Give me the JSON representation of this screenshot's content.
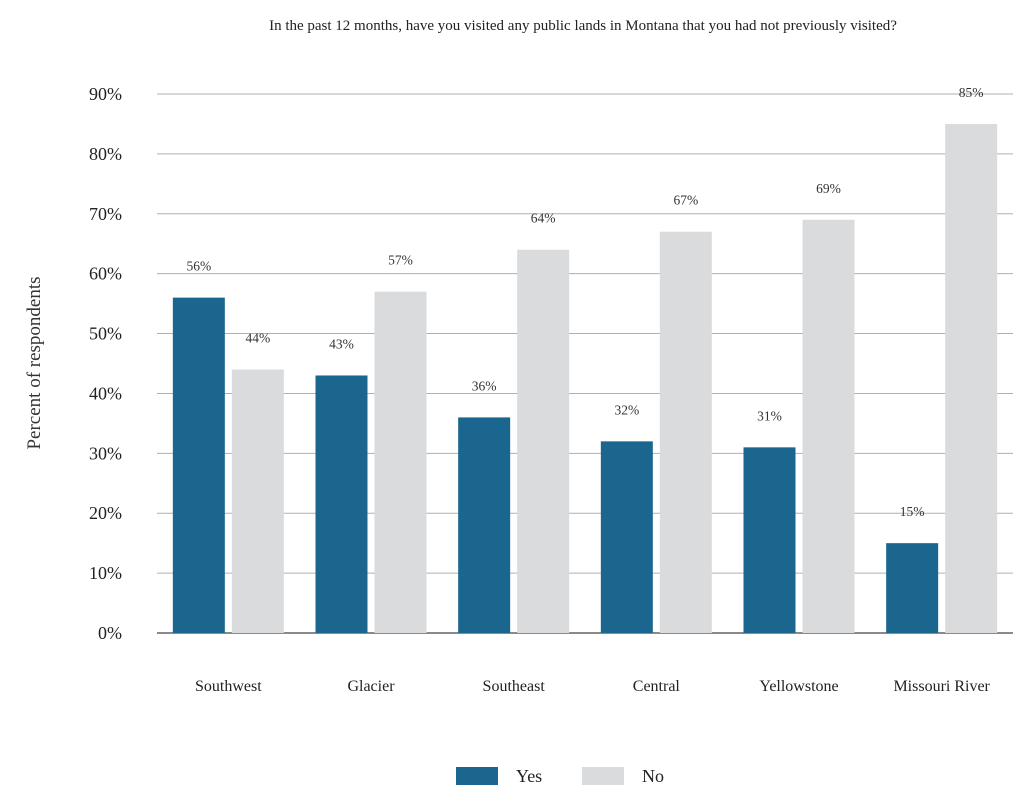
{
  "chart_data": {
    "type": "bar",
    "title": "In the past 12 months, have you visited any public lands in Montana that you had not previously visited?",
    "xlabel": "",
    "ylabel": "Percent of respondents",
    "categories": [
      "Southwest",
      "Glacier",
      "Southeast",
      "Central",
      "Yellowstone",
      "Missouri River"
    ],
    "series": [
      {
        "name": "Yes",
        "color": "#1a668f",
        "values": [
          56,
          43,
          36,
          32,
          31,
          15
        ]
      },
      {
        "name": "No",
        "color": "#dadbdc",
        "values": [
          44,
          57,
          64,
          67,
          69,
          85
        ]
      }
    ],
    "value_suffix": "%",
    "ylim": [
      0,
      90
    ],
    "yticks": [
      0,
      10,
      20,
      30,
      40,
      50,
      60,
      70,
      80,
      90
    ],
    "ytick_labels": [
      "0%",
      "10%",
      "20%",
      "30%",
      "40%",
      "50%",
      "60%",
      "70%",
      "80%",
      "90%"
    ],
    "grid": true,
    "legend_position": "bottom-center"
  }
}
